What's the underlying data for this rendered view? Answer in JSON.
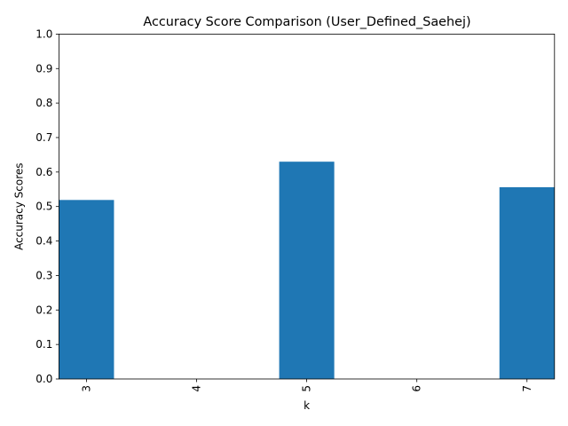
{
  "chart_data": {
    "type": "bar",
    "title": "Accuracy Score Comparison (User_Defined_Saehej)",
    "xlabel": "k",
    "ylabel": "Accuracy Scores",
    "categories": [
      "3",
      "4",
      "5",
      "6",
      "7"
    ],
    "values": [
      0.519,
      0,
      0.63,
      0,
      0.556
    ],
    "ylim": [
      0,
      1.0
    ],
    "yticks": [
      "0.0",
      "0.1",
      "0.2",
      "0.3",
      "0.4",
      "0.5",
      "0.6",
      "0.7",
      "0.8",
      "0.9",
      "1.0"
    ],
    "grid": false,
    "legend": "none",
    "bar_color": "#1f77b4"
  }
}
